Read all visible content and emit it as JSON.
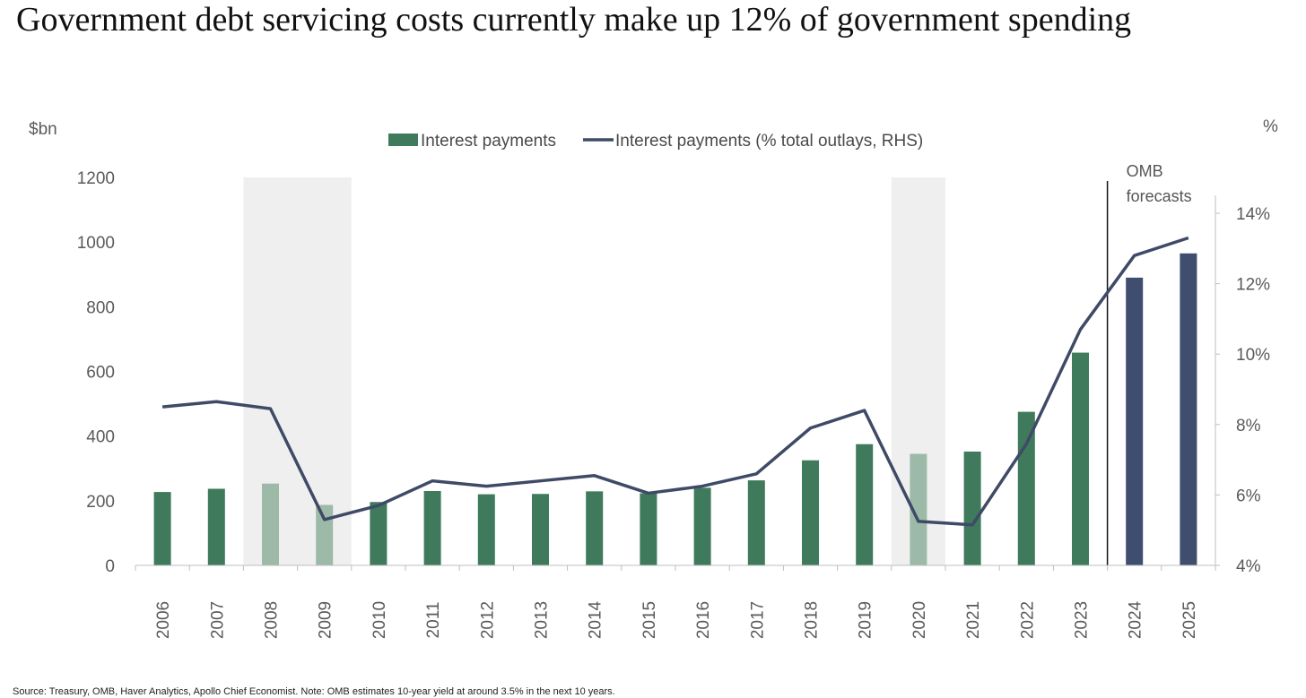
{
  "title": "Government debt servicing costs currently make up 12% of government spending",
  "source": "Source: Treasury, OMB, Haver Analytics, Apollo Chief Economist. Note: OMB estimates 10-year yield at around 3.5% in the next 10 years.",
  "forecast_note": [
    "OMB",
    "forecasts"
  ],
  "colors": {
    "bar_actual": "#3f7a5c",
    "bar_recession": "#9dbaa9",
    "bar_forecast": "#3f4e6e",
    "line": "#3f4a66",
    "recession_shade": "#efefef",
    "axis": "#bfbfbf"
  },
  "chart_data": {
    "type": "bar",
    "categories": [
      "2006",
      "2007",
      "2008",
      "2009",
      "2010",
      "2011",
      "2012",
      "2013",
      "2014",
      "2015",
      "2016",
      "2017",
      "2018",
      "2019",
      "2020",
      "2021",
      "2022",
      "2023",
      "2024",
      "2025"
    ],
    "series": [
      {
        "name": "Interest payments",
        "type": "bar",
        "axis": "left",
        "values": [
          227,
          237,
          253,
          187,
          196,
          230,
          220,
          221,
          229,
          223,
          240,
          263,
          325,
          375,
          345,
          352,
          475,
          658,
          890,
          965
        ]
      },
      {
        "name": "Interest payments (% total outlays, RHS)",
        "type": "line",
        "axis": "right",
        "values": [
          8.5,
          8.65,
          8.45,
          5.3,
          5.7,
          6.4,
          6.25,
          6.4,
          6.55,
          6.05,
          6.25,
          6.6,
          7.9,
          8.4,
          5.25,
          5.15,
          7.45,
          10.7,
          12.8,
          13.3
        ]
      }
    ],
    "bar_styles": [
      "actual",
      "actual",
      "recession",
      "recession",
      "actual",
      "actual",
      "actual",
      "actual",
      "actual",
      "actual",
      "actual",
      "actual",
      "actual",
      "actual",
      "recession",
      "actual",
      "actual",
      "actual",
      "forecast",
      "forecast"
    ],
    "recession_periods": [
      [
        "2008",
        "2009"
      ],
      [
        "2020",
        "2020"
      ]
    ],
    "forecast_start": "2024",
    "left_axis": {
      "label": "$bn",
      "min": 0,
      "max": 1200,
      "ticks": [
        0,
        200,
        400,
        600,
        800,
        1000,
        1200
      ]
    },
    "right_axis": {
      "label": "%",
      "min": 4,
      "max": 15,
      "ticks": [
        4,
        6,
        8,
        10,
        12,
        14
      ],
      "tick_labels": [
        "4%",
        "6%",
        "8%",
        "10%",
        "12%",
        "14%"
      ]
    },
    "grid": false,
    "legend": "top-center"
  }
}
